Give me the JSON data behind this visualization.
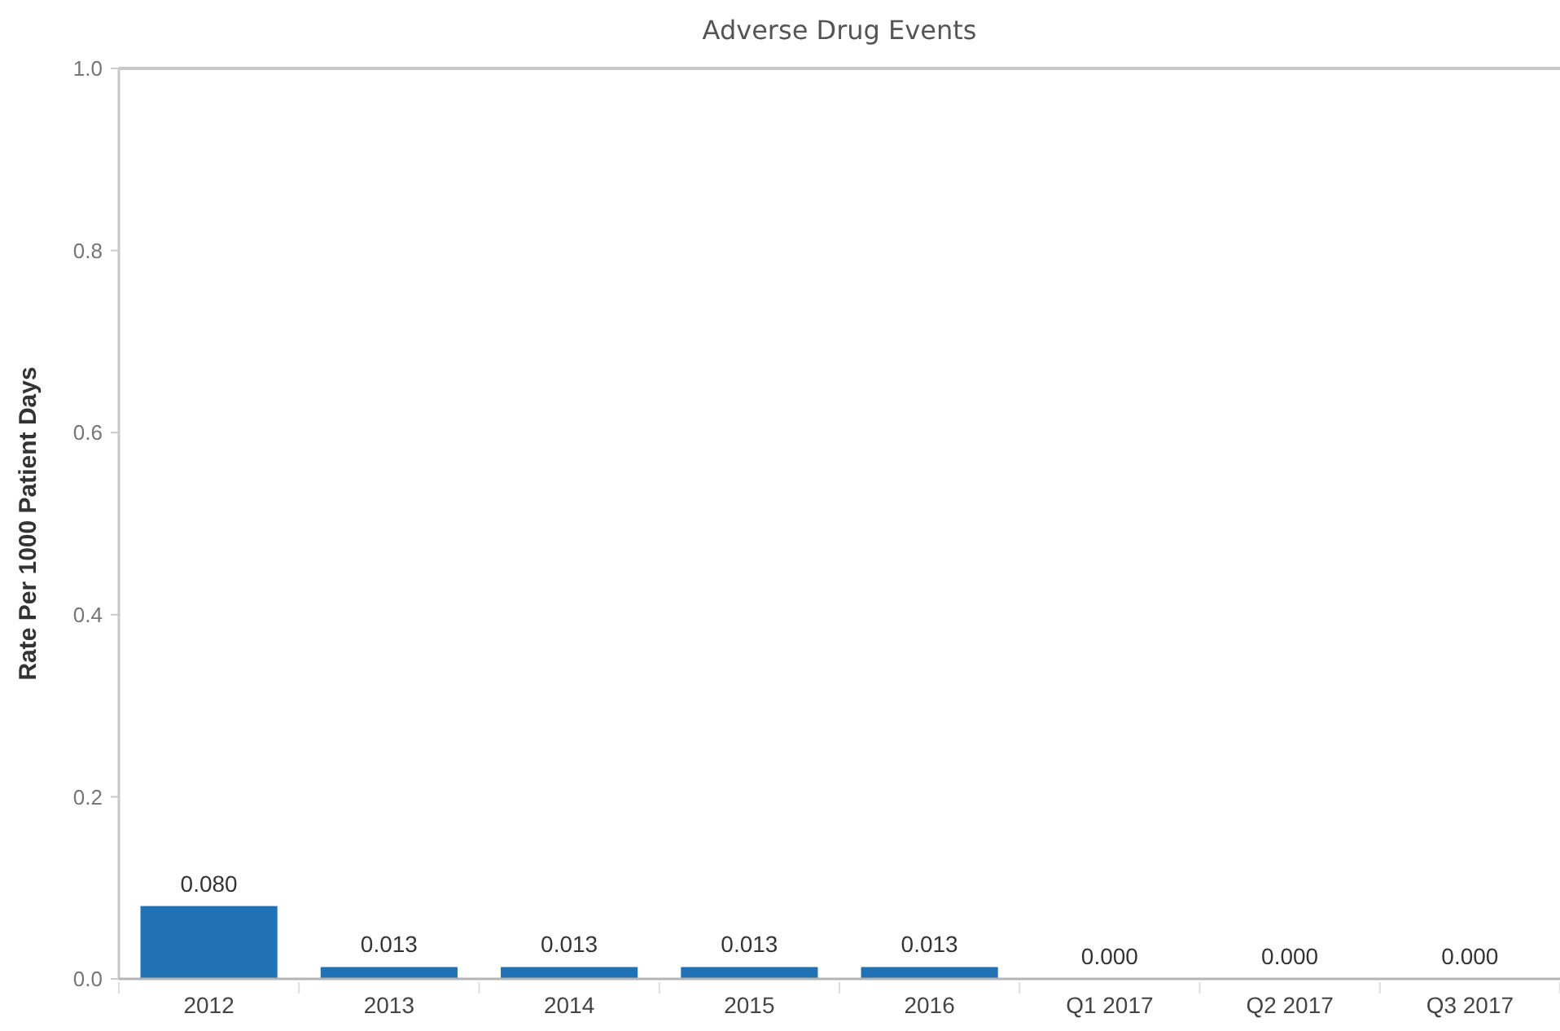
{
  "chart_data": {
    "type": "bar",
    "title": "Adverse Drug Events",
    "ylabel": "Rate Per 1000 Patient Days",
    "categories": [
      "2012",
      "2013",
      "2014",
      "2015",
      "2016",
      "Q1 2017",
      "Q2 2017",
      "Q3 2017"
    ],
    "values": [
      0.08,
      0.013,
      0.013,
      0.013,
      0.013,
      0,
      0,
      0
    ],
    "value_labels": [
      "0.080",
      "0.013",
      "0.013",
      "0.013",
      "0.013",
      "0.000",
      "0.000",
      "0.000"
    ],
    "color": "#2171b5",
    "ylim": [
      0,
      1
    ],
    "yticks": [
      {
        "value": 0,
        "label": "0.0"
      },
      {
        "value": 0.2,
        "label": "0.2"
      },
      {
        "value": 0.4,
        "label": "0.4"
      },
      {
        "value": 0.6,
        "label": "0.6"
      },
      {
        "value": 0.8,
        "label": "0.8"
      },
      {
        "value": 1,
        "label": "1.0"
      }
    ],
    "grid": false
  }
}
